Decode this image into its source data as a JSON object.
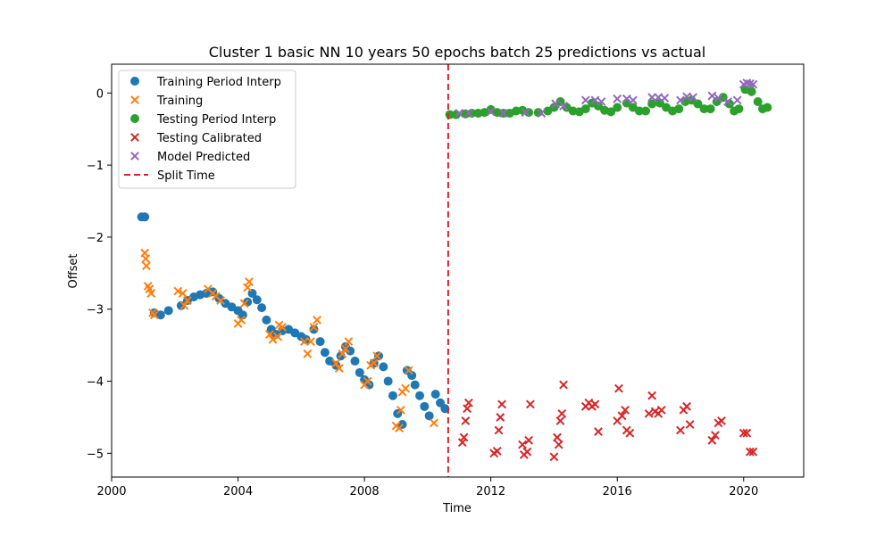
{
  "chart_data": {
    "type": "scatter",
    "title": "Cluster 1 basic NN 10 years 50 epochs batch 25 predictions vs actual",
    "xlabel": "Time",
    "ylabel": "Offset",
    "xlim": [
      2000.0,
      2021.9
    ],
    "ylim": [
      -5.33,
      0.4
    ],
    "xticks": [
      2000,
      2004,
      2008,
      2012,
      2016,
      2020
    ],
    "yticks": [
      0,
      -1,
      -2,
      -3,
      -4,
      -5
    ],
    "grid": false,
    "legend_position": "upper-left",
    "split_time": 2010.65,
    "series": [
      {
        "name": "Training Period Interp",
        "marker": "circle",
        "color": "#1f77b4",
        "points": [
          [
            2000.95,
            -1.72
          ],
          [
            2001.05,
            -1.72
          ],
          [
            2001.35,
            -3.05
          ],
          [
            2001.55,
            -3.08
          ],
          [
            2001.8,
            -3.02
          ],
          [
            2002.2,
            -2.95
          ],
          [
            2002.4,
            -2.88
          ],
          [
            2002.6,
            -2.83
          ],
          [
            2002.8,
            -2.8
          ],
          [
            2003.0,
            -2.78
          ],
          [
            2003.2,
            -2.76
          ],
          [
            2003.4,
            -2.85
          ],
          [
            2003.6,
            -2.92
          ],
          [
            2003.8,
            -2.97
          ],
          [
            2004.0,
            -3.02
          ],
          [
            2004.15,
            -3.08
          ],
          [
            2004.3,
            -2.9
          ],
          [
            2004.45,
            -2.78
          ],
          [
            2004.6,
            -2.87
          ],
          [
            2004.75,
            -2.98
          ],
          [
            2004.9,
            -3.15
          ],
          [
            2005.05,
            -3.28
          ],
          [
            2005.2,
            -3.35
          ],
          [
            2005.4,
            -3.3
          ],
          [
            2005.6,
            -3.28
          ],
          [
            2005.8,
            -3.33
          ],
          [
            2006.0,
            -3.38
          ],
          [
            2006.15,
            -3.42
          ],
          [
            2006.4,
            -3.28
          ],
          [
            2006.6,
            -3.45
          ],
          [
            2006.75,
            -3.6
          ],
          [
            2006.9,
            -3.72
          ],
          [
            2007.1,
            -3.78
          ],
          [
            2007.25,
            -3.65
          ],
          [
            2007.4,
            -3.52
          ],
          [
            2007.55,
            -3.58
          ],
          [
            2007.7,
            -3.72
          ],
          [
            2007.85,
            -3.88
          ],
          [
            2008.0,
            -3.98
          ],
          [
            2008.15,
            -4.05
          ],
          [
            2008.3,
            -3.75
          ],
          [
            2008.45,
            -3.65
          ],
          [
            2008.6,
            -3.8
          ],
          [
            2008.75,
            -4.0
          ],
          [
            2008.9,
            -4.2
          ],
          [
            2009.05,
            -4.45
          ],
          [
            2009.2,
            -4.6
          ],
          [
            2009.35,
            -3.85
          ],
          [
            2009.5,
            -3.92
          ],
          [
            2009.6,
            -4.05
          ],
          [
            2009.75,
            -4.2
          ],
          [
            2009.9,
            -4.35
          ],
          [
            2010.05,
            -4.48
          ],
          [
            2010.25,
            -4.18
          ],
          [
            2010.4,
            -4.3
          ],
          [
            2010.55,
            -4.38
          ]
        ]
      },
      {
        "name": "Training",
        "marker": "x",
        "color": "#ff7f0e",
        "points": [
          [
            2001.05,
            -2.22
          ],
          [
            2001.08,
            -2.3
          ],
          [
            2001.1,
            -2.4
          ],
          [
            2001.15,
            -2.68
          ],
          [
            2001.2,
            -2.72
          ],
          [
            2001.25,
            -2.78
          ],
          [
            2001.3,
            -3.05
          ],
          [
            2001.35,
            -3.08
          ],
          [
            2002.1,
            -2.75
          ],
          [
            2002.25,
            -2.78
          ],
          [
            2002.3,
            -2.95
          ],
          [
            2002.4,
            -2.88
          ],
          [
            2003.05,
            -2.72
          ],
          [
            2003.2,
            -2.78
          ],
          [
            2003.3,
            -2.82
          ],
          [
            2003.45,
            -2.88
          ],
          [
            2004.0,
            -3.2
          ],
          [
            2004.1,
            -3.15
          ],
          [
            2004.2,
            -2.92
          ],
          [
            2004.3,
            -2.7
          ],
          [
            2004.35,
            -2.62
          ],
          [
            2005.0,
            -3.35
          ],
          [
            2005.1,
            -3.42
          ],
          [
            2005.25,
            -3.38
          ],
          [
            2005.3,
            -3.22
          ],
          [
            2005.4,
            -3.25
          ],
          [
            2006.1,
            -3.45
          ],
          [
            2006.2,
            -3.62
          ],
          [
            2006.3,
            -3.45
          ],
          [
            2006.4,
            -3.25
          ],
          [
            2006.5,
            -3.15
          ],
          [
            2007.1,
            -3.75
          ],
          [
            2007.2,
            -3.82
          ],
          [
            2007.3,
            -3.62
          ],
          [
            2007.4,
            -3.55
          ],
          [
            2007.5,
            -3.45
          ],
          [
            2008.0,
            -4.05
          ],
          [
            2008.1,
            -4.0
          ],
          [
            2008.2,
            -3.78
          ],
          [
            2008.3,
            -3.75
          ],
          [
            2008.4,
            -3.65
          ],
          [
            2009.0,
            -4.62
          ],
          [
            2009.1,
            -4.65
          ],
          [
            2009.15,
            -4.4
          ],
          [
            2009.2,
            -4.15
          ],
          [
            2009.3,
            -4.1
          ],
          [
            2009.4,
            -3.85
          ],
          [
            2010.2,
            -4.58
          ]
        ]
      },
      {
        "name": "Testing Period Interp",
        "marker": "circle",
        "color": "#2ca02c",
        "points": [
          [
            2010.7,
            -0.3
          ],
          [
            2010.9,
            -0.3
          ],
          [
            2011.2,
            -0.29
          ],
          [
            2011.4,
            -0.28
          ],
          [
            2011.6,
            -0.28
          ],
          [
            2011.8,
            -0.27
          ],
          [
            2012.0,
            -0.23
          ],
          [
            2012.2,
            -0.27
          ],
          [
            2012.4,
            -0.28
          ],
          [
            2012.6,
            -0.28
          ],
          [
            2012.8,
            -0.25
          ],
          [
            2013.0,
            -0.24
          ],
          [
            2013.2,
            -0.27
          ],
          [
            2013.5,
            -0.27
          ],
          [
            2013.8,
            -0.25
          ],
          [
            2014.0,
            -0.2
          ],
          [
            2014.2,
            -0.12
          ],
          [
            2014.4,
            -0.2
          ],
          [
            2014.6,
            -0.25
          ],
          [
            2014.8,
            -0.26
          ],
          [
            2015.0,
            -0.22
          ],
          [
            2015.2,
            -0.14
          ],
          [
            2015.4,
            -0.18
          ],
          [
            2015.6,
            -0.24
          ],
          [
            2015.8,
            -0.26
          ],
          [
            2016.0,
            -0.2
          ],
          [
            2016.3,
            -0.14
          ],
          [
            2016.5,
            -0.2
          ],
          [
            2016.7,
            -0.25
          ],
          [
            2016.9,
            -0.25
          ],
          [
            2017.1,
            -0.15
          ],
          [
            2017.35,
            -0.14
          ],
          [
            2017.55,
            -0.2
          ],
          [
            2017.75,
            -0.25
          ],
          [
            2017.95,
            -0.22
          ],
          [
            2018.15,
            -0.12
          ],
          [
            2018.35,
            -0.1
          ],
          [
            2018.55,
            -0.15
          ],
          [
            2018.75,
            -0.22
          ],
          [
            2018.95,
            -0.22
          ],
          [
            2019.15,
            -0.12
          ],
          [
            2019.35,
            -0.06
          ],
          [
            2019.55,
            -0.15
          ],
          [
            2019.7,
            -0.25
          ],
          [
            2019.85,
            -0.22
          ],
          [
            2020.05,
            0.05
          ],
          [
            2020.25,
            0.02
          ],
          [
            2020.45,
            -0.12
          ],
          [
            2020.6,
            -0.22
          ],
          [
            2020.75,
            -0.2
          ]
        ]
      },
      {
        "name": "Testing Calibrated",
        "marker": "x",
        "color": "#d62728",
        "points": [
          [
            2011.1,
            -4.85
          ],
          [
            2011.15,
            -4.78
          ],
          [
            2011.2,
            -4.55
          ],
          [
            2011.25,
            -4.38
          ],
          [
            2011.3,
            -4.3
          ],
          [
            2012.1,
            -5.0
          ],
          [
            2012.2,
            -4.97
          ],
          [
            2012.25,
            -4.68
          ],
          [
            2012.3,
            -4.5
          ],
          [
            2012.35,
            -4.32
          ],
          [
            2013.0,
            -4.88
          ],
          [
            2013.05,
            -5.02
          ],
          [
            2013.15,
            -4.98
          ],
          [
            2013.2,
            -4.82
          ],
          [
            2013.25,
            -4.32
          ],
          [
            2014.0,
            -5.05
          ],
          [
            2014.1,
            -4.78
          ],
          [
            2014.15,
            -4.88
          ],
          [
            2014.2,
            -4.55
          ],
          [
            2014.25,
            -4.45
          ],
          [
            2014.3,
            -4.05
          ],
          [
            2015.0,
            -4.35
          ],
          [
            2015.1,
            -4.3
          ],
          [
            2015.2,
            -4.35
          ],
          [
            2015.3,
            -4.32
          ],
          [
            2015.4,
            -4.7
          ],
          [
            2016.0,
            -4.55
          ],
          [
            2016.05,
            -4.1
          ],
          [
            2016.15,
            -4.48
          ],
          [
            2016.25,
            -4.4
          ],
          [
            2016.3,
            -4.68
          ],
          [
            2016.4,
            -4.72
          ],
          [
            2017.0,
            -4.45
          ],
          [
            2017.1,
            -4.2
          ],
          [
            2017.2,
            -4.42
          ],
          [
            2017.3,
            -4.45
          ],
          [
            2017.4,
            -4.4
          ],
          [
            2018.0,
            -4.68
          ],
          [
            2018.1,
            -4.4
          ],
          [
            2018.2,
            -4.35
          ],
          [
            2018.3,
            -4.6
          ],
          [
            2019.0,
            -4.82
          ],
          [
            2019.1,
            -4.75
          ],
          [
            2019.2,
            -4.58
          ],
          [
            2019.3,
            -4.55
          ],
          [
            2020.0,
            -4.72
          ],
          [
            2020.1,
            -4.72
          ],
          [
            2020.2,
            -4.98
          ],
          [
            2020.3,
            -4.98
          ]
        ]
      },
      {
        "name": "Model Predicted",
        "marker": "x",
        "color": "#9467bd",
        "points": [
          [
            2011.0,
            -0.28
          ],
          [
            2011.3,
            -0.28
          ],
          [
            2012.0,
            -0.26
          ],
          [
            2012.4,
            -0.28
          ],
          [
            2013.1,
            -0.27
          ],
          [
            2013.6,
            -0.28
          ],
          [
            2014.05,
            -0.15
          ],
          [
            2014.3,
            -0.18
          ],
          [
            2015.0,
            -0.1
          ],
          [
            2015.3,
            -0.1
          ],
          [
            2015.5,
            -0.12
          ],
          [
            2016.0,
            -0.08
          ],
          [
            2016.3,
            -0.08
          ],
          [
            2016.5,
            -0.1
          ],
          [
            2017.1,
            -0.06
          ],
          [
            2017.3,
            -0.06
          ],
          [
            2017.5,
            -0.07
          ],
          [
            2018.0,
            -0.1
          ],
          [
            2018.2,
            -0.05
          ],
          [
            2018.4,
            -0.06
          ],
          [
            2019.0,
            -0.04
          ],
          [
            2019.2,
            -0.07
          ],
          [
            2019.5,
            -0.12
          ],
          [
            2019.8,
            -0.1
          ],
          [
            2020.0,
            0.12
          ],
          [
            2020.1,
            0.14
          ],
          [
            2020.2,
            0.13
          ],
          [
            2020.3,
            0.12
          ]
        ]
      },
      {
        "name": "Split Time",
        "marker": "dashed-vertical-line",
        "color": "#d62728"
      }
    ]
  }
}
